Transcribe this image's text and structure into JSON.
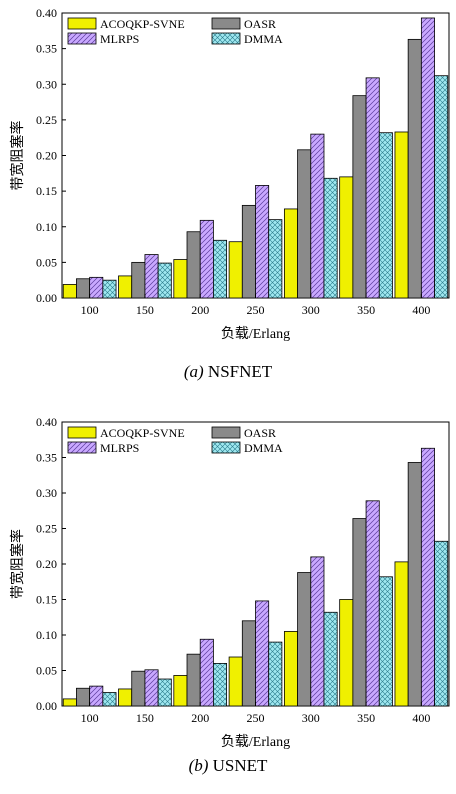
{
  "chart_data": [
    {
      "type": "bar",
      "caption_letter": "(a)",
      "caption_name": "NSFNET",
      "categories": [
        "100",
        "150",
        "200",
        "250",
        "300",
        "350",
        "400"
      ],
      "ylabel": "带宽阻塞率",
      "xlabel": "负载/Erlang",
      "ylim": [
        0,
        0.4
      ],
      "yticks": [
        "0.00",
        "0.05",
        "0.10",
        "0.15",
        "0.20",
        "0.25",
        "0.30",
        "0.35",
        "0.40"
      ],
      "legend_position": "top-left",
      "series": [
        {
          "name": "ACOQKP-SVNE",
          "pattern": "yellow",
          "values": [
            0.019,
            0.031,
            0.054,
            0.079,
            0.125,
            0.17,
            0.233
          ]
        },
        {
          "name": "OASR",
          "pattern": "gray",
          "values": [
            0.027,
            0.05,
            0.093,
            0.13,
            0.208,
            0.284,
            0.363
          ]
        },
        {
          "name": "MLRPS",
          "pattern": "purple-hatch",
          "values": [
            0.029,
            0.061,
            0.109,
            0.158,
            0.23,
            0.309,
            0.393
          ]
        },
        {
          "name": "DMMA",
          "pattern": "cyan-cross",
          "values": [
            0.025,
            0.049,
            0.081,
            0.11,
            0.168,
            0.232,
            0.312
          ]
        }
      ]
    },
    {
      "type": "bar",
      "caption_letter": "(b)",
      "caption_name": "USNET",
      "categories": [
        "100",
        "150",
        "200",
        "250",
        "300",
        "350",
        "400"
      ],
      "ylabel": "带宽阻塞率",
      "xlabel": "负载/Erlang",
      "ylim": [
        0,
        0.4
      ],
      "yticks": [
        "0.00",
        "0.05",
        "0.10",
        "0.15",
        "0.20",
        "0.25",
        "0.30",
        "0.35",
        "0.40"
      ],
      "legend_position": "top-left",
      "series": [
        {
          "name": "ACOQKP-SVNE",
          "pattern": "yellow",
          "values": [
            0.01,
            0.024,
            0.043,
            0.069,
            0.105,
            0.15,
            0.203
          ]
        },
        {
          "name": "OASR",
          "pattern": "gray",
          "values": [
            0.025,
            0.049,
            0.073,
            0.12,
            0.188,
            0.264,
            0.343
          ]
        },
        {
          "name": "MLRPS",
          "pattern": "purple-hatch",
          "values": [
            0.028,
            0.051,
            0.094,
            0.148,
            0.21,
            0.289,
            0.363
          ]
        },
        {
          "name": "DMMA",
          "pattern": "cyan-cross",
          "values": [
            0.019,
            0.038,
            0.06,
            0.09,
            0.132,
            0.182,
            0.232
          ]
        }
      ]
    }
  ],
  "colors": {
    "yellow": "#f0f000",
    "gray": "#8a8a8a",
    "purple": "#c9a8ff",
    "cyan": "#9fe8f0",
    "stroke": "#000000"
  }
}
